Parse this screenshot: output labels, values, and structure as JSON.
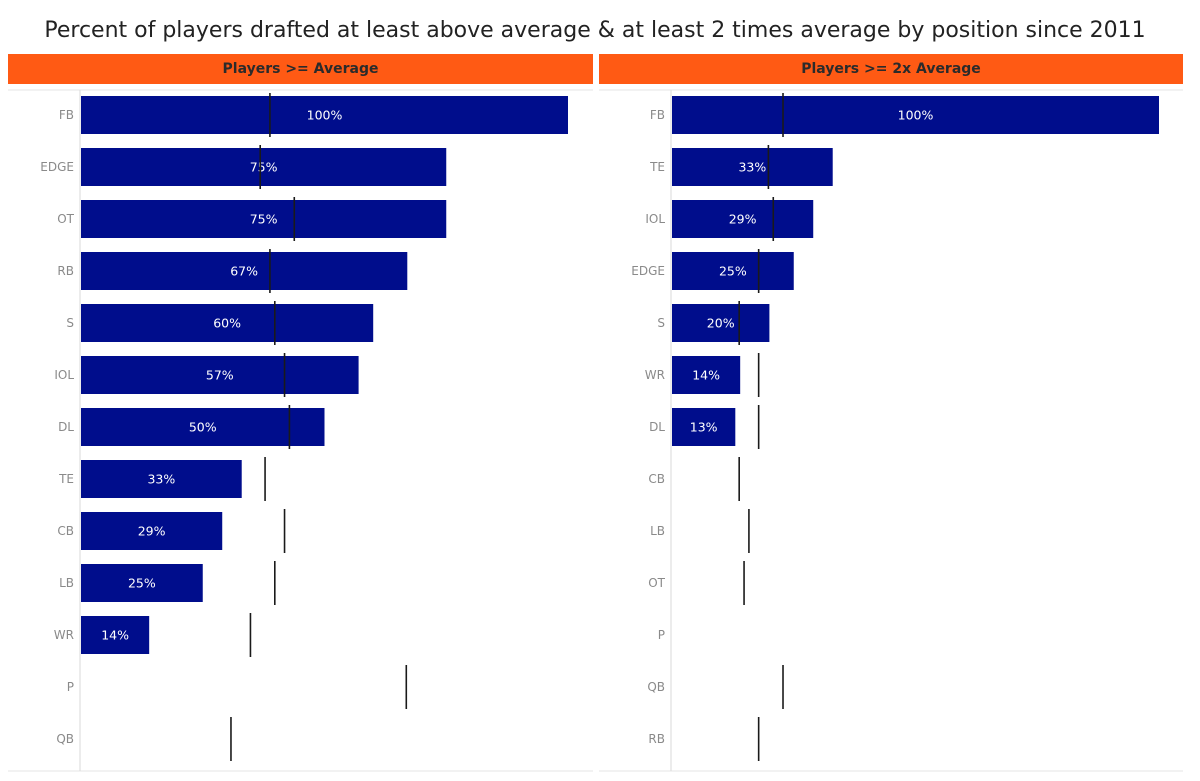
{
  "title": "Percent of players drafted at least above average & at least 2 times average by position since 2011",
  "colors": {
    "bar": "#000d8c",
    "header": "#ff5a14",
    "reference_line": "#1a1a1a"
  },
  "chart_data": [
    {
      "type": "bar",
      "orientation": "horizontal",
      "title": "Players >= Average",
      "xlim": [
        0,
        100
      ],
      "unit": "%",
      "categories": [
        "FB",
        "EDGE",
        "OT",
        "RB",
        "S",
        "IOL",
        "DL",
        "TE",
        "CB",
        "LB",
        "WR",
        "P",
        "QB"
      ],
      "values": [
        100,
        75,
        75,
        67,
        60,
        57,
        50,
        33,
        29,
        25,
        14,
        null,
        null
      ],
      "labels": [
        "100%",
        "75%",
        "75%",
        "67%",
        "60%",
        "57%",
        "50%",
        "33%",
        "29%",
        "25%",
        "14%",
        "",
        ""
      ],
      "reference_values": [
        39,
        37,
        44,
        39,
        40,
        42,
        43,
        38,
        42,
        40,
        35,
        67,
        31
      ]
    },
    {
      "type": "bar",
      "orientation": "horizontal",
      "title": "Players >= 2x Average",
      "xlim": [
        0,
        100
      ],
      "unit": "%",
      "categories": [
        "FB",
        "TE",
        "IOL",
        "EDGE",
        "S",
        "WR",
        "DL",
        "CB",
        "LB",
        "OT",
        "P",
        "QB",
        "RB"
      ],
      "values": [
        100,
        33,
        29,
        25,
        20,
        14,
        13,
        null,
        null,
        null,
        null,
        null,
        null
      ],
      "labels": [
        "100%",
        "33%",
        "29%",
        "25%",
        "20%",
        "14%",
        "13%",
        "",
        "",
        "",
        "",
        "",
        ""
      ],
      "reference_values": [
        23,
        20,
        21,
        18,
        14,
        18,
        18,
        14,
        16,
        15,
        null,
        23,
        18
      ]
    }
  ]
}
